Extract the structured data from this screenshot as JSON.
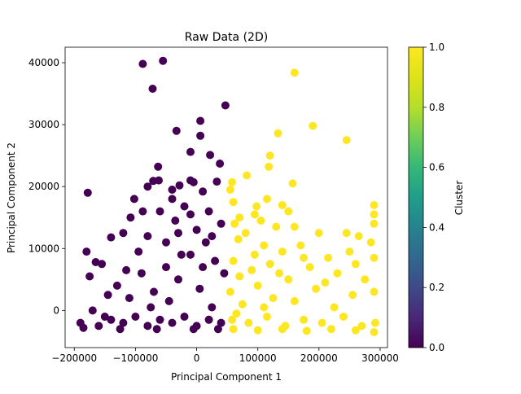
{
  "chart_data": {
    "type": "scatter",
    "title": "Raw Data (2D)",
    "xlabel": "Principal Component 1",
    "ylabel": "Principal Component 2",
    "xlim": [
      -215000,
      312000
    ],
    "ylim": [
      -6000,
      42500
    ],
    "xticks": [
      -200000,
      -100000,
      0,
      100000,
      200000,
      300000
    ],
    "xtick_labels": [
      "−200000",
      "−100000",
      "0",
      "100000",
      "200000",
      "300000"
    ],
    "yticks": [
      0,
      10000,
      20000,
      30000,
      40000
    ],
    "ytick_labels": [
      "0",
      "10000",
      "20000",
      "30000",
      "40000"
    ],
    "colorbar": {
      "label": "Cluster",
      "range": [
        0.0,
        1.0
      ],
      "ticks": [
        0.0,
        0.2,
        0.4,
        0.6,
        0.8,
        1.0
      ],
      "tick_labels": [
        "0.0",
        "0.2",
        "0.4",
        "0.6",
        "0.8",
        "1.0"
      ],
      "colormap": "viridis"
    },
    "colors": {
      "cluster_0": "#440154",
      "cluster_1": "#fde725"
    },
    "grid": false,
    "series": [
      {
        "cluster": 0,
        "points": [
          [
            -88000,
            39800
          ],
          [
            -55000,
            40300
          ],
          [
            -72000,
            35800
          ],
          [
            47000,
            33100
          ],
          [
            6000,
            30600
          ],
          [
            -33000,
            29000
          ],
          [
            6000,
            28200
          ],
          [
            -10000,
            25600
          ],
          [
            22000,
            25100
          ],
          [
            38000,
            23700
          ],
          [
            -63000,
            23200
          ],
          [
            -178000,
            19000
          ],
          [
            -71000,
            20900
          ],
          [
            -62000,
            21000
          ],
          [
            -10000,
            21000
          ],
          [
            -5000,
            20700
          ],
          [
            -28000,
            20200
          ],
          [
            -40000,
            19500
          ],
          [
            -80000,
            20000
          ],
          [
            -102000,
            18000
          ],
          [
            33000,
            20800
          ],
          [
            10000,
            19200
          ],
          [
            -40000,
            18000
          ],
          [
            -20000,
            16800
          ],
          [
            -108000,
            15000
          ],
          [
            -88000,
            16000
          ],
          [
            -60000,
            16000
          ],
          [
            -35000,
            14500
          ],
          [
            -10000,
            15500
          ],
          [
            20000,
            16000
          ],
          [
            40000,
            14000
          ],
          [
            -180000,
            9500
          ],
          [
            -165000,
            7800
          ],
          [
            -155000,
            7500
          ],
          [
            -140000,
            11800
          ],
          [
            -120000,
            12500
          ],
          [
            -80000,
            12000
          ],
          [
            -50000,
            11000
          ],
          [
            -30000,
            12500
          ],
          [
            0,
            13000
          ],
          [
            25000,
            12000
          ],
          [
            -175000,
            5500
          ],
          [
            -170000,
            0
          ],
          [
            -150000,
            -1000
          ],
          [
            -130000,
            4000
          ],
          [
            -110000,
            2000
          ],
          [
            -90000,
            6000
          ],
          [
            -70000,
            3000
          ],
          [
            -50000,
            7000
          ],
          [
            -30000,
            5000
          ],
          [
            -10000,
            9000
          ],
          [
            10000,
            7000
          ],
          [
            30000,
            8000
          ],
          [
            45000,
            6000
          ],
          [
            -190000,
            -2000
          ],
          [
            -160000,
            -2500
          ],
          [
            -140000,
            -1500
          ],
          [
            -120000,
            -2000
          ],
          [
            -100000,
            -1000
          ],
          [
            -80000,
            -2500
          ],
          [
            -60000,
            -1500
          ],
          [
            -40000,
            -2000
          ],
          [
            -20000,
            -1000
          ],
          [
            0,
            -2500
          ],
          [
            20000,
            -1500
          ],
          [
            40000,
            -2000
          ],
          [
            -185000,
            -2800
          ],
          [
            -125000,
            -3000
          ],
          [
            -65000,
            -3000
          ],
          [
            -5000,
            -3000
          ],
          [
            35000,
            -3000
          ],
          [
            -145000,
            2500
          ],
          [
            -95000,
            9500
          ],
          [
            -45000,
            1500
          ],
          [
            5000,
            3500
          ],
          [
            25000,
            500
          ],
          [
            -115000,
            6500
          ],
          [
            -75000,
            500
          ],
          [
            -25000,
            9000
          ],
          [
            15000,
            11000
          ]
        ]
      },
      {
        "cluster": 1,
        "points": [
          [
            160000,
            38400
          ],
          [
            190000,
            29800
          ],
          [
            133000,
            28600
          ],
          [
            245000,
            27500
          ],
          [
            120000,
            25000
          ],
          [
            118000,
            23200
          ],
          [
            82000,
            21800
          ],
          [
            58000,
            20700
          ],
          [
            157000,
            20500
          ],
          [
            55000,
            19500
          ],
          [
            115000,
            18000
          ],
          [
            60000,
            17500
          ],
          [
            98000,
            16800
          ],
          [
            140000,
            17000
          ],
          [
            290000,
            17000
          ],
          [
            95000,
            15500
          ],
          [
            150000,
            16000
          ],
          [
            290000,
            15500
          ],
          [
            62000,
            14000
          ],
          [
            70000,
            15000
          ],
          [
            105000,
            14500
          ],
          [
            130000,
            13500
          ],
          [
            160000,
            13500
          ],
          [
            200000,
            12500
          ],
          [
            245000,
            12500
          ],
          [
            265000,
            12000
          ],
          [
            290000,
            14000
          ],
          [
            68000,
            11500
          ],
          [
            80000,
            12500
          ],
          [
            110000,
            10500
          ],
          [
            140000,
            9500
          ],
          [
            170000,
            10500
          ],
          [
            215000,
            8500
          ],
          [
            285000,
            11000
          ],
          [
            60000,
            8000
          ],
          [
            90000,
            6500
          ],
          [
            120000,
            7500
          ],
          [
            150000,
            5000
          ],
          [
            185000,
            7000
          ],
          [
            230000,
            6000
          ],
          [
            260000,
            7500
          ],
          [
            290000,
            8500
          ],
          [
            55000,
            3000
          ],
          [
            75000,
            1000
          ],
          [
            100000,
            4000
          ],
          [
            125000,
            2000
          ],
          [
            160000,
            1500
          ],
          [
            195000,
            3500
          ],
          [
            225000,
            500
          ],
          [
            255000,
            2500
          ],
          [
            290000,
            3000
          ],
          [
            58000,
            -1500
          ],
          [
            85000,
            -2000
          ],
          [
            115000,
            -1000
          ],
          [
            145000,
            -2500
          ],
          [
            175000,
            -1500
          ],
          [
            205000,
            -2000
          ],
          [
            240000,
            -1000
          ],
          [
            270000,
            -2500
          ],
          [
            292000,
            -2000
          ],
          [
            60000,
            -3000
          ],
          [
            100000,
            -3200
          ],
          [
            140000,
            -3000
          ],
          [
            180000,
            -3300
          ],
          [
            220000,
            -3000
          ],
          [
            260000,
            -3200
          ],
          [
            290000,
            -3500
          ],
          [
            70000,
            5500
          ],
          [
            135000,
            6000
          ],
          [
            210000,
            4500
          ],
          [
            275000,
            5000
          ],
          [
            95000,
            9000
          ],
          [
            175000,
            8500
          ],
          [
            250000,
            9500
          ],
          [
            65000,
            -500
          ],
          [
            110000,
            500
          ]
        ]
      }
    ]
  }
}
